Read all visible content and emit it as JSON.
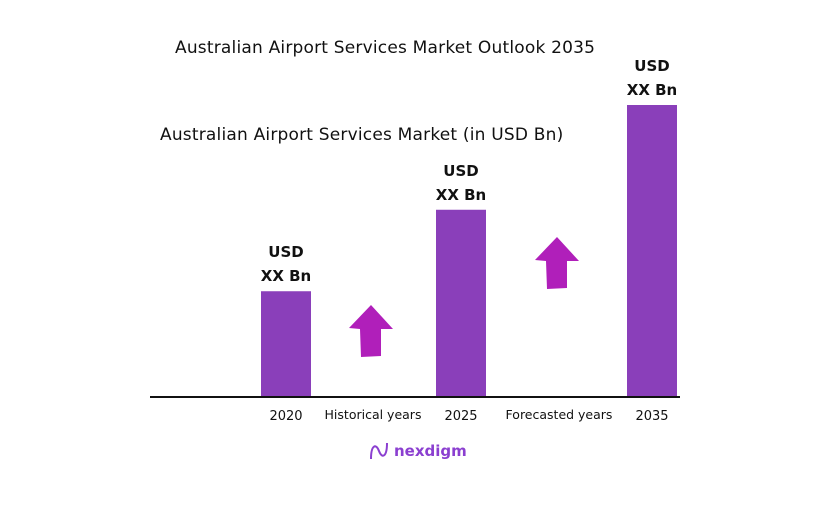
{
  "chart_data": {
    "type": "bar",
    "title": "Australian Airport Services Market Outlook 2035",
    "subtitle": "Australian Airport Services Market (in USD Bn)",
    "categories": [
      "2020",
      "2025",
      "2035"
    ],
    "relative_values": [
      0.36,
      0.64,
      1.0
    ],
    "data_labels": [
      [
        "USD",
        "XX Bn"
      ],
      [
        "USD",
        "XX Bn"
      ],
      [
        "USD",
        "XX Bn"
      ]
    ],
    "period_labels": [
      "Historical years",
      "Forecasted years"
    ],
    "bar_color": "#8a3fba",
    "arrow_color": "#b01fba",
    "grid": false,
    "y_axis_shown": false
  },
  "logo": {
    "text": "nexdigm"
  }
}
